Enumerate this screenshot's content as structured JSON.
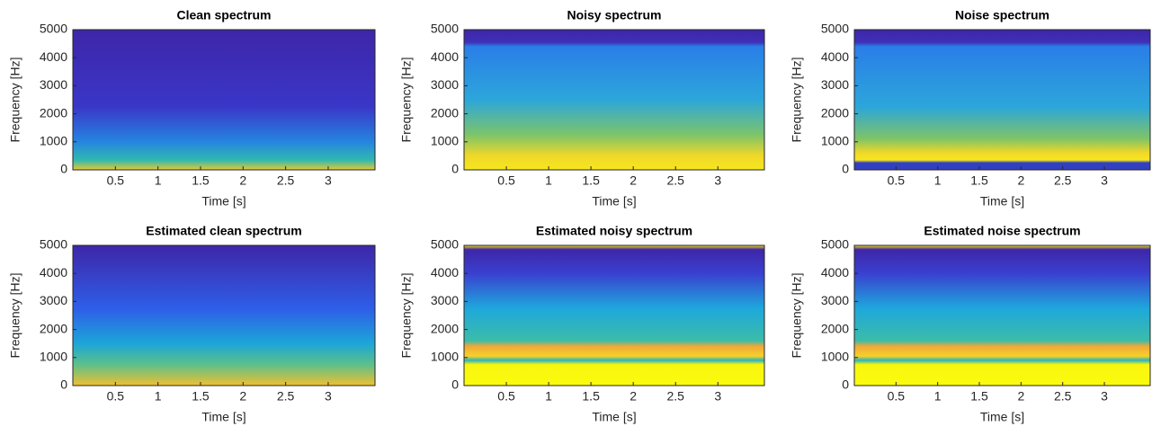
{
  "chart_data": [
    {
      "type": "heatmap",
      "title": "Clean spectrum",
      "xlabel": "Time [s]",
      "ylabel": "Frequency [Hz]",
      "xlim": [
        0,
        3.55
      ],
      "xticks": [
        0.5,
        1,
        1.5,
        2,
        2.5,
        3
      ],
      "ylim": [
        0,
        5000
      ],
      "yticks": [
        0,
        1000,
        2000,
        3000,
        4000,
        5000
      ]
    },
    {
      "type": "heatmap",
      "title": "Noisy spectrum",
      "xlabel": "Time [s]",
      "ylabel": "Frequency [Hz]",
      "xlim": [
        0,
        3.55
      ],
      "xticks": [
        0.5,
        1,
        1.5,
        2,
        2.5,
        3
      ],
      "ylim": [
        0,
        5000
      ],
      "yticks": [
        0,
        1000,
        2000,
        3000,
        4000,
        5000
      ]
    },
    {
      "type": "heatmap",
      "title": "Noise spectrum",
      "xlabel": "Time [s]",
      "ylabel": "Frequency [Hz]",
      "xlim": [
        0,
        3.55
      ],
      "xticks": [
        0.5,
        1,
        1.5,
        2,
        2.5,
        3
      ],
      "ylim": [
        0,
        5000
      ],
      "yticks": [
        0,
        1000,
        2000,
        3000,
        4000,
        5000
      ]
    },
    {
      "type": "heatmap",
      "title": "Estimated clean spectrum",
      "xlabel": "Time [s]",
      "ylabel": "Frequency [Hz]",
      "xlim": [
        0,
        3.55
      ],
      "xticks": [
        0.5,
        1,
        1.5,
        2,
        2.5,
        3
      ],
      "ylim": [
        0,
        5000
      ],
      "yticks": [
        0,
        1000,
        2000,
        3000,
        4000,
        5000
      ]
    },
    {
      "type": "heatmap",
      "title": "Estimated noisy spectrum",
      "xlabel": "Time [s]",
      "ylabel": "Frequency [Hz]",
      "xlim": [
        0,
        3.55
      ],
      "xticks": [
        0.5,
        1,
        1.5,
        2,
        2.5,
        3
      ],
      "ylim": [
        0,
        5000
      ],
      "yticks": [
        0,
        1000,
        2000,
        3000,
        4000,
        5000
      ]
    },
    {
      "type": "heatmap",
      "title": "Estimated noise spectrum",
      "xlabel": "Time [s]",
      "ylabel": "Frequency [Hz]",
      "xlim": [
        0,
        3.55
      ],
      "xticks": [
        0.5,
        1,
        1.5,
        2,
        2.5,
        3
      ],
      "ylim": [
        0,
        5000
      ],
      "yticks": [
        0,
        1000,
        2000,
        3000,
        4000,
        5000
      ]
    }
  ]
}
